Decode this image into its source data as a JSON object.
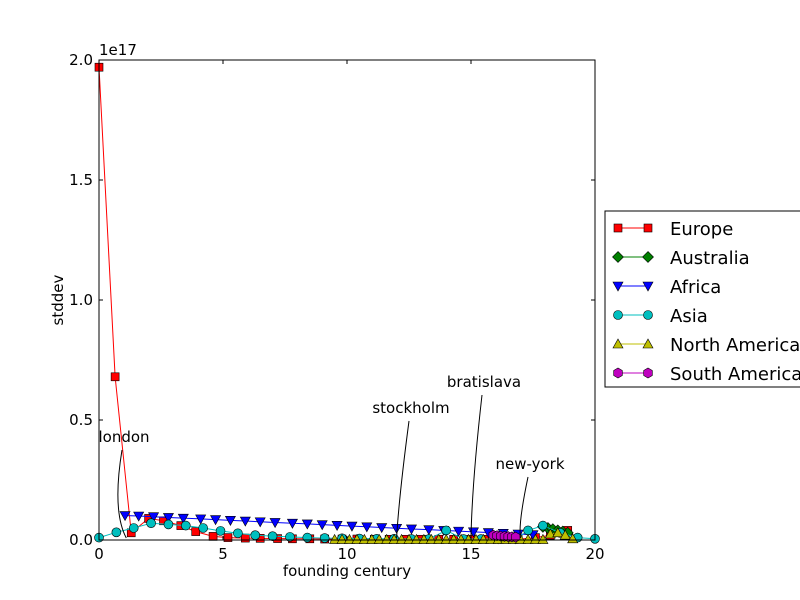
{
  "chart_data": {
    "type": "line",
    "xlabel": "founding century",
    "ylabel": "stddev",
    "y_offset_label": "1e17",
    "xlim": [
      0,
      20
    ],
    "ylim": [
      0,
      2.0
    ],
    "x_ticks": [
      "0",
      "5",
      "10",
      "15",
      "20"
    ],
    "y_ticks": [
      "0.0",
      "0.5",
      "1.0",
      "1.5",
      "2.0"
    ],
    "grid": false,
    "legend_position": "right, outside plot",
    "series": [
      {
        "name": "Europe",
        "color": "#ff0000",
        "marker": "square",
        "x": [
          0,
          0.65,
          1.3,
          2.0,
          2.6,
          3.3,
          3.9,
          4.6,
          5.2,
          5.9,
          6.5,
          7.2,
          7.8,
          8.5,
          9.1,
          9.8,
          10.4,
          11.1,
          11.7,
          12.4,
          13.0,
          13.7,
          14.3,
          15.0,
          15.6,
          16.3,
          16.9,
          17.6,
          18.2,
          18.9
        ],
        "y": [
          1.97,
          0.68,
          0.03,
          0.09,
          0.08,
          0.06,
          0.035,
          0.015,
          0.01,
          0.008,
          0.007,
          0.006,
          0.005,
          0.005,
          0.004,
          0.004,
          0.004,
          0.003,
          0.003,
          0.003,
          0.003,
          0.003,
          0.003,
          0.003,
          0.003,
          0.003,
          0.003,
          0.01,
          0.02,
          0.04
        ]
      },
      {
        "name": "Australia",
        "color": "#008000",
        "marker": "diamond",
        "x": [
          17.9,
          18.1,
          18.3,
          18.5,
          18.7,
          18.9
        ],
        "y": [
          0.055,
          0.05,
          0.045,
          0.04,
          0.035,
          0.03
        ]
      },
      {
        "name": "Africa",
        "color": "#0000ff",
        "marker": "triangle-down",
        "x": [
          1.05,
          1.6,
          2.2,
          2.8,
          3.4,
          4.1,
          4.7,
          5.3,
          5.9,
          6.5,
          7.1,
          7.8,
          8.4,
          9.0,
          9.6,
          10.2,
          10.8,
          11.4,
          12.0,
          12.6,
          13.3,
          13.9,
          14.5,
          15.1,
          15.7,
          16.3,
          16.9,
          17.5
        ],
        "y": [
          0.102,
          0.1,
          0.097,
          0.094,
          0.091,
          0.088,
          0.085,
          0.082,
          0.079,
          0.076,
          0.073,
          0.07,
          0.067,
          0.064,
          0.061,
          0.058,
          0.055,
          0.052,
          0.049,
          0.046,
          0.043,
          0.04,
          0.037,
          0.034,
          0.031,
          0.028,
          0.025,
          0.022
        ]
      },
      {
        "name": "Asia",
        "color": "#00bfbf",
        "marker": "circle",
        "x": [
          0,
          0.7,
          1.4,
          2.1,
          2.8,
          3.5,
          4.2,
          4.9,
          5.6,
          6.3,
          7.0,
          7.7,
          8.4,
          9.1,
          9.8,
          10.5,
          11.2,
          11.9,
          12.6,
          13.3,
          14.0,
          14.7,
          15.4,
          16.1,
          16.8,
          17.3,
          17.9,
          18.6,
          19.3,
          20.0
        ],
        "y": [
          0.01,
          0.032,
          0.05,
          0.07,
          0.065,
          0.06,
          0.05,
          0.038,
          0.028,
          0.02,
          0.016,
          0.013,
          0.01,
          0.008,
          0.007,
          0.006,
          0.005,
          0.005,
          0.004,
          0.004,
          0.04,
          0.004,
          0.004,
          0.003,
          0.003,
          0.04,
          0.06,
          0.03,
          0.01,
          0.005
        ]
      },
      {
        "name": "North America",
        "color": "#bfbf00",
        "marker": "triangle-up",
        "x": [
          9.5,
          9.8,
          10.1,
          10.4,
          10.7,
          11.0,
          11.3,
          11.6,
          11.9,
          12.2,
          12.5,
          12.8,
          13.1,
          13.4,
          13.7,
          14.0,
          14.3,
          14.6,
          14.9,
          15.2,
          15.5,
          15.8,
          16.1,
          16.4,
          16.7,
          17.0,
          17.3,
          17.6,
          17.9,
          18.2,
          18.5,
          18.8,
          19.1
        ],
        "y": [
          0.002,
          0.002,
          0.002,
          0.002,
          0.002,
          0.002,
          0.002,
          0.002,
          0.002,
          0.002,
          0.002,
          0.002,
          0.002,
          0.002,
          0.002,
          0.002,
          0.002,
          0.002,
          0.002,
          0.002,
          0.002,
          0.002,
          0.002,
          0.002,
          0.002,
          0.002,
          0.002,
          0.002,
          0.002,
          0.025,
          0.03,
          0.02,
          0.005
        ]
      },
      {
        "name": "South America",
        "color": "#bf00bf",
        "marker": "hexagon",
        "x": [
          15.9,
          16.05,
          16.2,
          16.35,
          16.5,
          16.65,
          16.8
        ],
        "y": [
          0.02,
          0.018,
          0.016,
          0.015,
          0.014,
          0.013,
          0.012
        ]
      }
    ],
    "annotations": [
      {
        "text": "london",
        "x": 1.1,
        "y": 0.0
      },
      {
        "text": "stockholm",
        "x": 12.0,
        "y": 0.0
      },
      {
        "text": "bratislava",
        "x": 15.0,
        "y": 0.0
      },
      {
        "text": "new-york",
        "x": 17.0,
        "y": 0.0
      }
    ]
  }
}
